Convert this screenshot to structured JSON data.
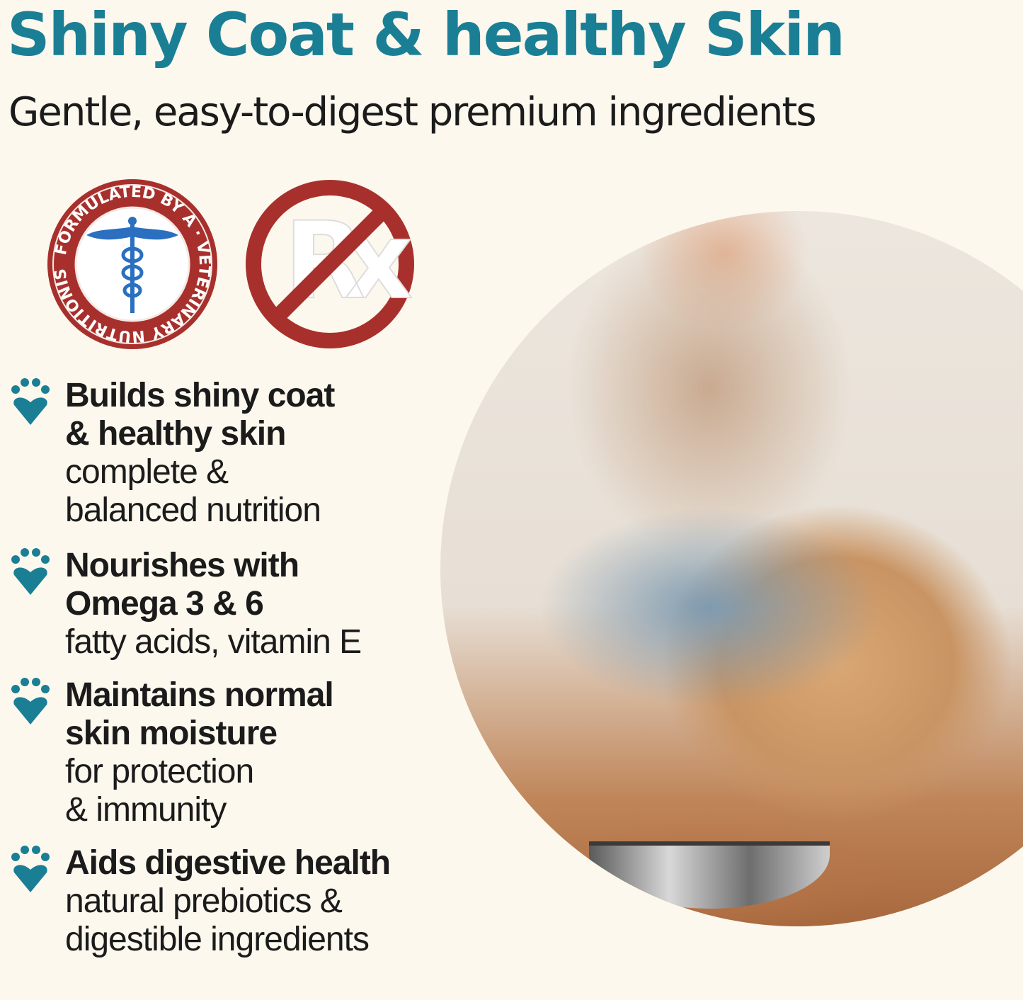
{
  "header": {
    "title": "Shiny Coat & healthy Skin",
    "subtitle": "Gentle, easy-to-digest premium ingredients"
  },
  "badges": {
    "vet_seal": "FORMULATED BY A VETERINARY NUTRITIONIST",
    "no_rx": "Rx"
  },
  "colors": {
    "accent": "#1a7f95",
    "badge_red": "#a8302c",
    "background": "#fcf8ee"
  },
  "features": [
    {
      "icon": "paw-heart-icon",
      "headline": [
        "Builds shiny coat",
        "& healthy skin"
      ],
      "detail": [
        "complete &",
        "balanced nutrition"
      ]
    },
    {
      "icon": "paw-heart-icon",
      "headline": [
        "Nourishes with",
        "Omega 3 & 6"
      ],
      "detail": [
        "fatty acids, vitamin E"
      ]
    },
    {
      "icon": "paw-heart-icon",
      "headline": [
        "Maintains normal",
        "skin moisture"
      ],
      "detail": [
        "for protection",
        "& immunity"
      ]
    },
    {
      "icon": "paw-heart-icon",
      "headline": [
        "Aids digestive health"
      ],
      "detail": [
        "natural prebiotics &",
        "digestible ingredients"
      ]
    }
  ]
}
